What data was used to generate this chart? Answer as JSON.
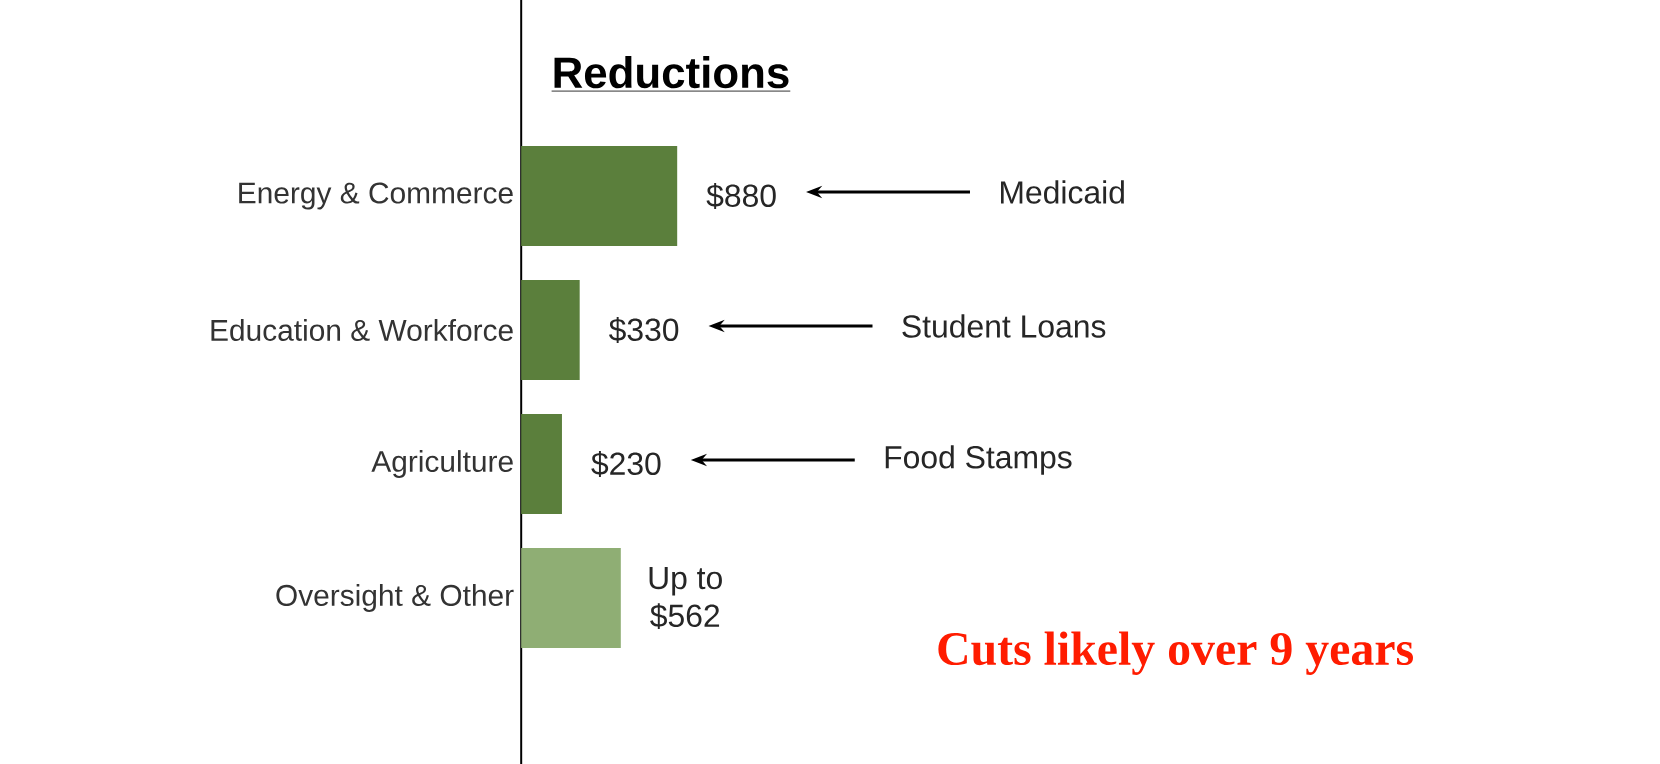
{
  "chart_data": {
    "type": "bar",
    "orientation": "horizontal",
    "title": "Reductions",
    "categories": [
      "Energy & Commerce",
      "Education & Workforce",
      "Agriculture",
      "Oversight & Other"
    ],
    "values": [
      880,
      330,
      230,
      562
    ],
    "value_labels": [
      "$880",
      "$330",
      "$230",
      "Up to $562"
    ],
    "colors": [
      "#5b7f3c",
      "#5b7f3c",
      "#5b7f3c",
      "#8fae74"
    ],
    "tick_labels": "y",
    "annotations": [
      "Medicaid",
      "Student Loans",
      "Food Stamps",
      "Cuts likely over 9 years"
    ]
  }
}
